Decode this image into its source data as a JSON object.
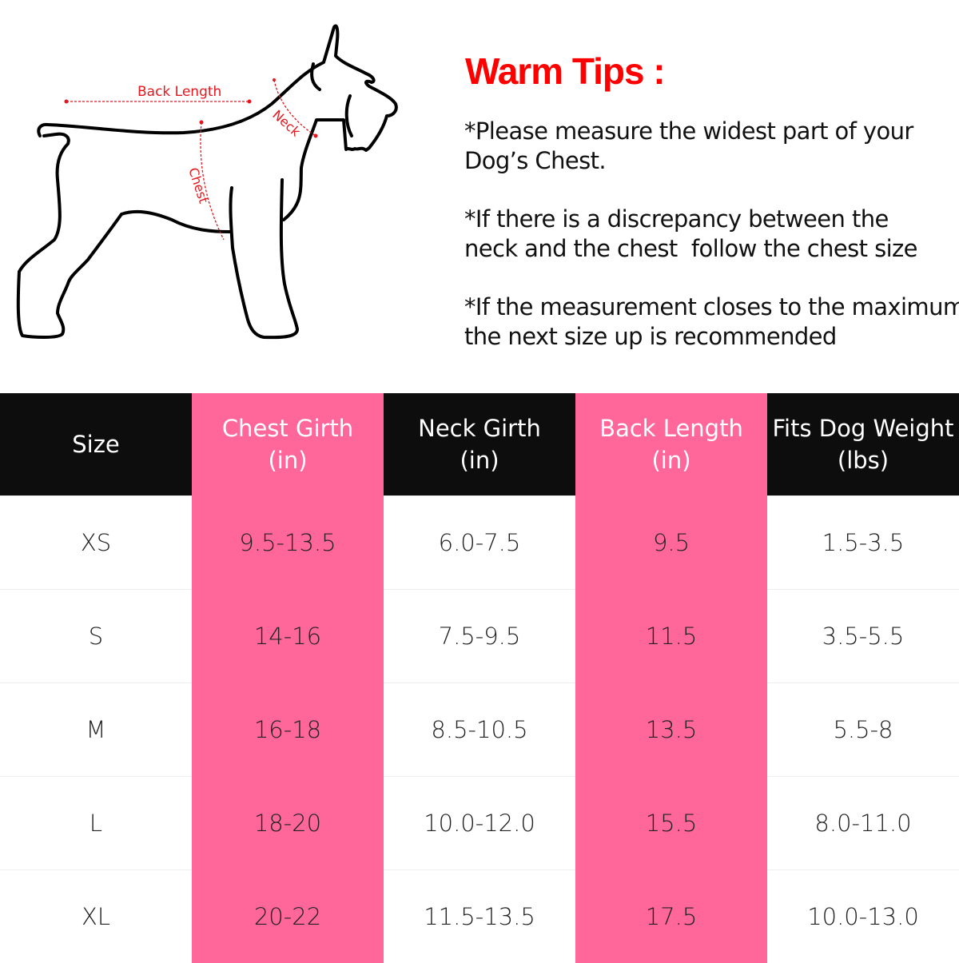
{
  "diagram": {
    "labels": {
      "back_length": "Back Length",
      "neck": "Neck",
      "chest": "Chest"
    },
    "measure_color": "#e5161d"
  },
  "tips": {
    "title": "Warm Tips :",
    "items": [
      "*Please measure the widest part of your\nDog’s Chest.",
      "*If there is a discrepancy between the\nneck and the chest  follow the chest size",
      "*If the measurement closes to the maximum\nthe next size up is recommended"
    ]
  },
  "colors": {
    "accent": "#ff6699",
    "header": "#0d0d0d",
    "title": "#ff0000"
  },
  "table": {
    "headers": [
      {
        "line1": "Size",
        "line2": ""
      },
      {
        "line1": "Chest Girth",
        "line2": "(in)"
      },
      {
        "line1": "Neck Girth",
        "line2": "(in)"
      },
      {
        "line1": "Back Length",
        "line2": "(in)"
      },
      {
        "line1": "Fits Dog Weight",
        "line2": "(lbs)"
      }
    ],
    "rows": [
      [
        "XS",
        "9.5-13.5",
        "6.0-7.5",
        "9.5",
        "1.5-3.5"
      ],
      [
        "S",
        "14-16",
        "7.5-9.5",
        "11.5",
        "3.5-5.5"
      ],
      [
        "M",
        "16-18",
        "8.5-10.5",
        "13.5",
        "5.5-8"
      ],
      [
        "L",
        "18-20",
        "10.0-12.0",
        "15.5",
        "8.0-11.0"
      ],
      [
        "XL",
        "20-22",
        "11.5-13.5",
        "17.5",
        "10.0-13.0"
      ]
    ]
  }
}
